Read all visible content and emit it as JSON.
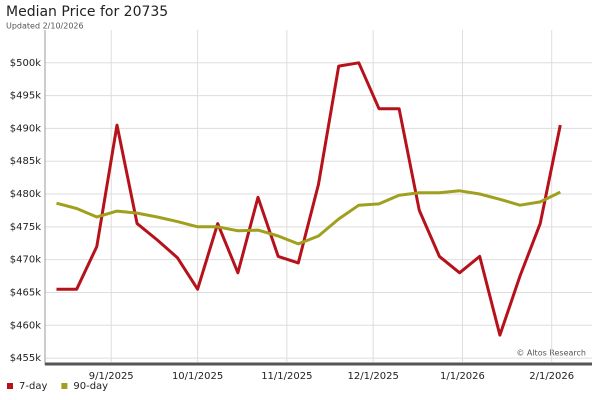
{
  "chart_data": {
    "type": "line",
    "title": "Median Price for 20735",
    "subtitle": "Updated 2/10/2026",
    "annotation": "© Altos Research",
    "x": [
      "2025-08-13",
      "2025-08-20",
      "2025-08-27",
      "2025-09-03",
      "2025-09-10",
      "2025-09-17",
      "2025-09-24",
      "2025-10-01",
      "2025-10-08",
      "2025-10-15",
      "2025-10-22",
      "2025-10-29",
      "2025-11-05",
      "2025-11-12",
      "2025-11-19",
      "2025-11-26",
      "2025-12-03",
      "2025-12-10",
      "2025-12-17",
      "2025-12-24",
      "2025-12-31",
      "2026-01-07",
      "2026-01-14",
      "2026-01-21",
      "2026-01-28",
      "2026-02-04"
    ],
    "series": [
      {
        "name": "7-day",
        "color": "#b5121b",
        "values": [
          465500,
          465500,
          472000,
          490500,
          475500,
          473000,
          470300,
          465500,
          475500,
          468000,
          479500,
          470500,
          469500,
          481500,
          499500,
          500000,
          493000,
          493000,
          477500,
          470500,
          468000,
          470500,
          458500,
          467500,
          475500,
          490500
        ]
      },
      {
        "name": "90-day",
        "color": "#a0a01e",
        "values": [
          478600,
          477800,
          476500,
          477400,
          477100,
          476500,
          475800,
          475000,
          475000,
          474400,
          474500,
          473600,
          472400,
          473600,
          476200,
          478300,
          478500,
          479800,
          480200,
          480200,
          480500,
          480000,
          479200,
          478300,
          478800,
          480300
        ]
      }
    ],
    "xlim": [
      "2025-08-09",
      "2026-02-15"
    ],
    "xticks": [
      {
        "value": "2025-09-01",
        "label": "9/1/2025"
      },
      {
        "value": "2025-10-01",
        "label": "10/1/2025"
      },
      {
        "value": "2025-11-01",
        "label": "11/1/2025"
      },
      {
        "value": "2025-12-01",
        "label": "12/1/2025"
      },
      {
        "value": "2026-01-01",
        "label": "1/1/2026"
      },
      {
        "value": "2026-02-01",
        "label": "2/1/2026"
      }
    ],
    "ylim": [
      454400,
      505000
    ],
    "yticks": [
      {
        "value": 455000,
        "label": "$455k"
      },
      {
        "value": 460000,
        "label": "$460k"
      },
      {
        "value": 465000,
        "label": "$465k"
      },
      {
        "value": 470000,
        "label": "$470k"
      },
      {
        "value": 475000,
        "label": "$475k"
      },
      {
        "value": 480000,
        "label": "$480k"
      },
      {
        "value": 485000,
        "label": "$485k"
      },
      {
        "value": 490000,
        "label": "$490k"
      },
      {
        "value": 495000,
        "label": "$495k"
      },
      {
        "value": 500000,
        "label": "$500k"
      }
    ],
    "grid": true
  }
}
